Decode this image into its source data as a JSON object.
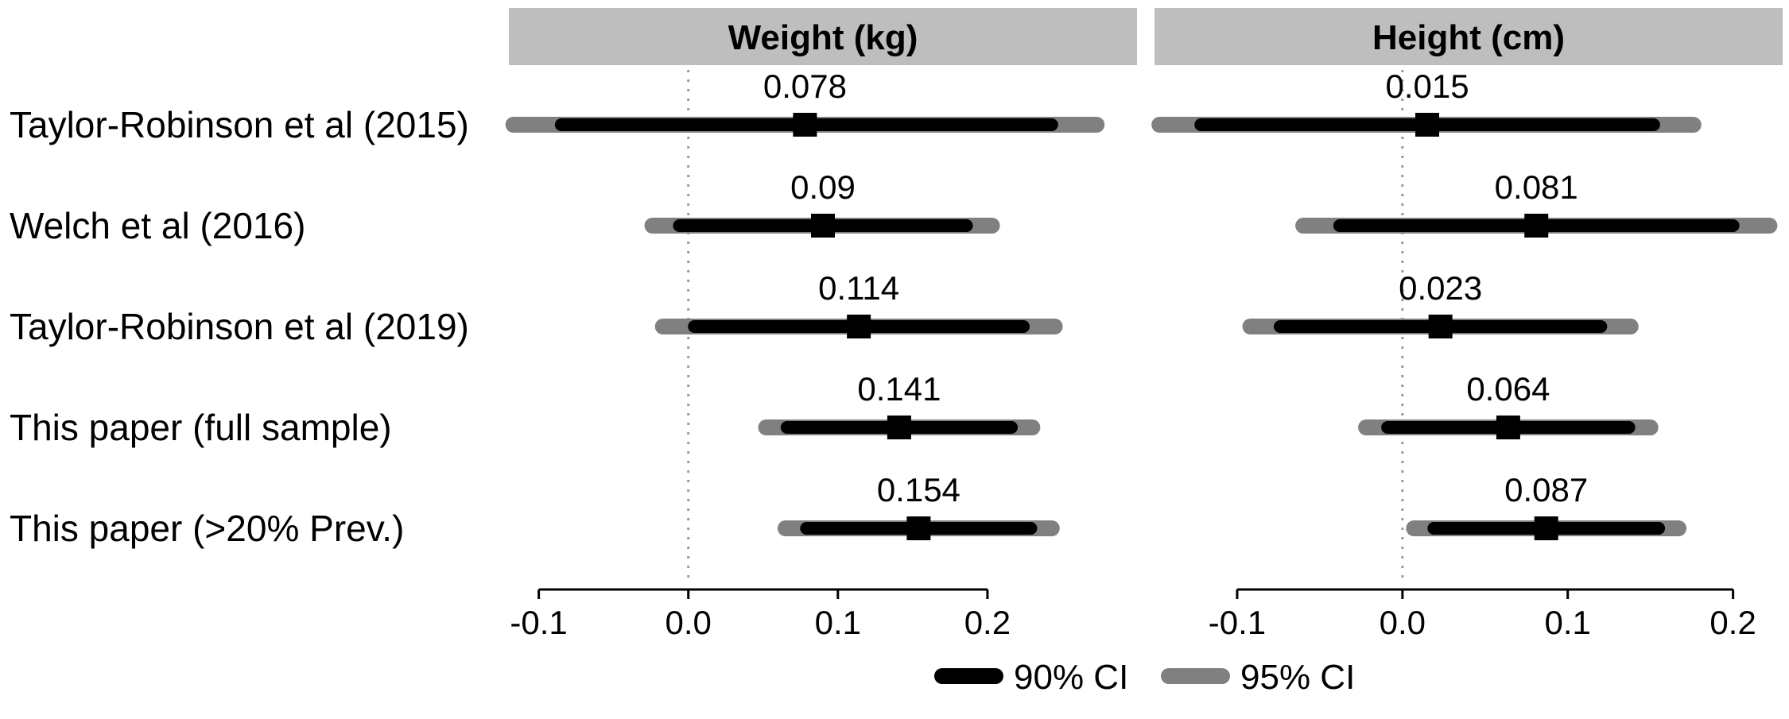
{
  "chart_data": {
    "type": "forest",
    "legend": {
      "position": "bottom",
      "items": [
        {
          "label": "90% CI",
          "color": "#000000"
        },
        {
          "label": "95% CI",
          "color": "#808080"
        }
      ]
    },
    "studies": [
      "Taylor-Robinson et al (2015)",
      "Welch et al (2016)",
      "Taylor-Robinson et al (2019)",
      "This paper (full sample)",
      "This paper (>20% Prev.)"
    ],
    "reference_line": 0,
    "panels": [
      {
        "title": "Weight (kg)",
        "xlim": [
          -0.12,
          0.3
        ],
        "ticks": [
          -0.1,
          0.0,
          0.1,
          0.2
        ],
        "tick_labels": [
          "-0.1",
          "0.0",
          "0.1",
          "0.2"
        ],
        "rows": [
          {
            "estimate": 0.078,
            "label": "0.078",
            "ci90": [
              -0.085,
              0.243
            ],
            "ci95": [
              -0.117,
              0.273
            ]
          },
          {
            "estimate": 0.09,
            "label": "0.09",
            "ci90": [
              -0.006,
              0.186
            ],
            "ci95": [
              -0.024,
              0.203
            ]
          },
          {
            "estimate": 0.114,
            "label": "0.114",
            "ci90": [
              0.004,
              0.224
            ],
            "ci95": [
              -0.017,
              0.245
            ]
          },
          {
            "estimate": 0.141,
            "label": "0.141",
            "ci90": [
              0.066,
              0.216
            ],
            "ci95": [
              0.052,
              0.23
            ]
          },
          {
            "estimate": 0.154,
            "label": "0.154",
            "ci90": [
              0.079,
              0.229
            ],
            "ci95": [
              0.065,
              0.243
            ]
          }
        ]
      },
      {
        "title": "Height (cm)",
        "xlim": [
          -0.15,
          0.23
        ],
        "ticks": [
          -0.1,
          0.0,
          0.1,
          0.2
        ],
        "tick_labels": [
          "-0.1",
          "0.0",
          "0.1",
          "0.2"
        ],
        "rows": [
          {
            "estimate": 0.015,
            "label": "0.015",
            "ci90": [
              -0.122,
              0.152
            ],
            "ci95": [
              -0.147,
              0.176
            ]
          },
          {
            "estimate": 0.081,
            "label": "0.081",
            "ci90": [
              -0.038,
              0.2
            ],
            "ci95": [
              -0.06,
              0.222
            ]
          },
          {
            "estimate": 0.023,
            "label": "0.023",
            "ci90": [
              -0.074,
              0.12
            ],
            "ci95": [
              -0.092,
              0.138
            ]
          },
          {
            "estimate": 0.064,
            "label": "0.064",
            "ci90": [
              -0.009,
              0.137
            ],
            "ci95": [
              -0.022,
              0.15
            ]
          },
          {
            "estimate": 0.087,
            "label": "0.087",
            "ci90": [
              0.019,
              0.155
            ],
            "ci95": [
              0.007,
              0.167
            ]
          }
        ]
      }
    ]
  }
}
